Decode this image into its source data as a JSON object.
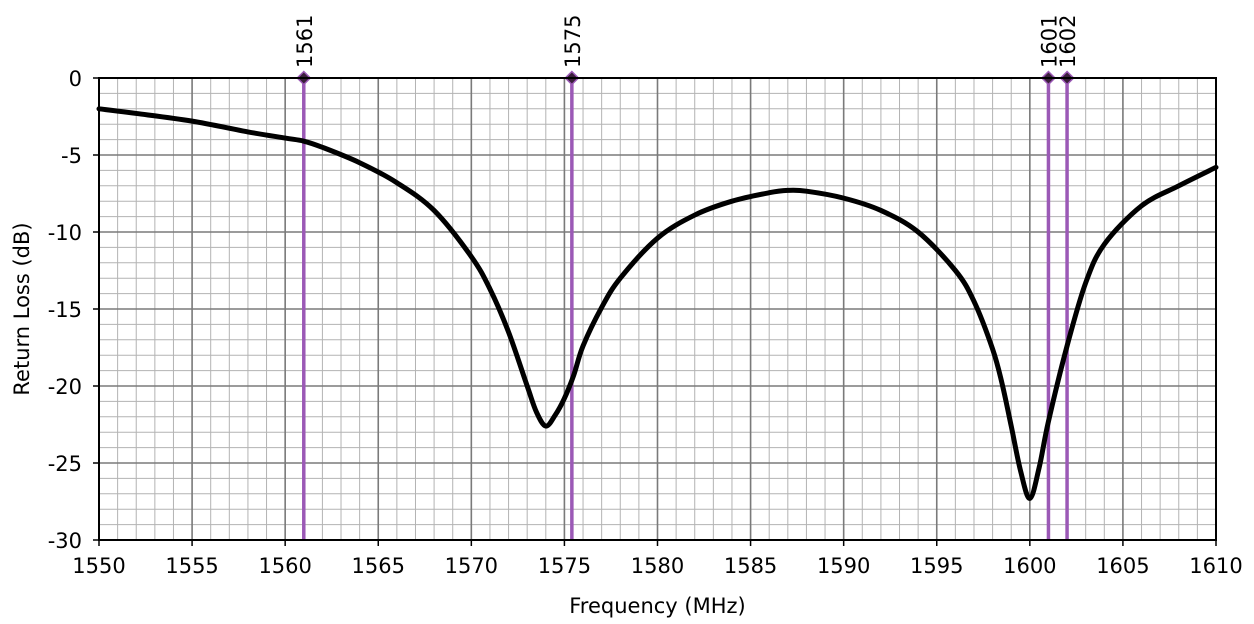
{
  "chart_data": {
    "type": "line",
    "title": "",
    "xlabel": "Frequency (MHz)",
    "ylabel": "Return Loss (dB)",
    "xlim": [
      1550,
      1610
    ],
    "ylim": [
      -30,
      0
    ],
    "x_ticks": [
      1550,
      1555,
      1560,
      1565,
      1570,
      1575,
      1580,
      1585,
      1590,
      1595,
      1600,
      1605,
      1610
    ],
    "y_ticks": [
      0,
      -5,
      -10,
      -15,
      -20,
      -25,
      -30
    ],
    "minor_grid": {
      "x_step": 1,
      "y_step": 1
    },
    "grid": true,
    "legend": "none",
    "series": [
      {
        "color": "#000000",
        "x": [
          1550,
          1552,
          1555,
          1558,
          1560,
          1561,
          1562,
          1564,
          1566,
          1568,
          1570,
          1571,
          1572,
          1573,
          1573.5,
          1574,
          1574.5,
          1575,
          1575.5,
          1576,
          1577,
          1578,
          1580,
          1582,
          1584,
          1586,
          1587,
          1588,
          1590,
          1592,
          1594,
          1596,
          1597,
          1598,
          1598.5,
          1599,
          1599.5,
          1600,
          1600.5,
          1601,
          1602,
          1603,
          1604,
          1606,
          1608,
          1610
        ],
        "y": [
          -2.0,
          -2.3,
          -2.8,
          -3.5,
          -3.9,
          -4.1,
          -4.5,
          -5.5,
          -6.8,
          -8.6,
          -11.6,
          -13.7,
          -16.5,
          -20.0,
          -21.7,
          -22.6,
          -21.9,
          -20.8,
          -19.3,
          -17.4,
          -14.9,
          -13.0,
          -10.4,
          -8.9,
          -8.0,
          -7.45,
          -7.3,
          -7.35,
          -7.8,
          -8.6,
          -10.0,
          -12.5,
          -14.5,
          -17.6,
          -19.8,
          -22.6,
          -25.5,
          -27.3,
          -25.3,
          -22.3,
          -17.4,
          -13.3,
          -10.8,
          -8.3,
          -7.0,
          -5.8
        ]
      }
    ],
    "markers": [
      {
        "label": "1561",
        "x": 1561,
        "color": "#9b59b6"
      },
      {
        "label": "1575",
        "x": 1575.4,
        "color": "#9b59b6"
      },
      {
        "label": "1601",
        "x": 1601,
        "color": "#9b59b6"
      },
      {
        "label": "1602",
        "x": 1602,
        "color": "#9b59b6"
      }
    ]
  }
}
